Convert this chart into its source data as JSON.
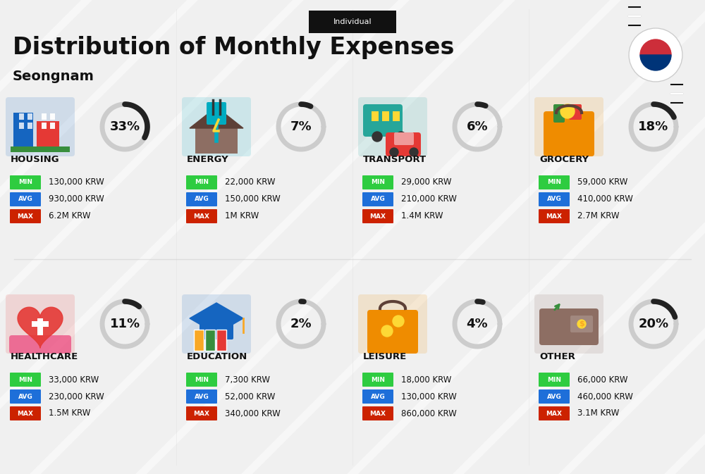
{
  "title": "Distribution of Monthly Expenses",
  "subtitle": "Individual",
  "location": "Seongnam",
  "bg_color": "#f0f0f0",
  "categories": [
    {
      "name": "HOUSING",
      "percent": 33,
      "min": "130,000 KRW",
      "avg": "930,000 KRW",
      "max": "6.2M KRW",
      "icon": "housing",
      "row": 0,
      "col": 0
    },
    {
      "name": "ENERGY",
      "percent": 7,
      "min": "22,000 KRW",
      "avg": "150,000 KRW",
      "max": "1M KRW",
      "icon": "energy",
      "row": 0,
      "col": 1
    },
    {
      "name": "TRANSPORT",
      "percent": 6,
      "min": "29,000 KRW",
      "avg": "210,000 KRW",
      "max": "1.4M KRW",
      "icon": "transport",
      "row": 0,
      "col": 2
    },
    {
      "name": "GROCERY",
      "percent": 18,
      "min": "59,000 KRW",
      "avg": "410,000 KRW",
      "max": "2.7M KRW",
      "icon": "grocery",
      "row": 0,
      "col": 3
    },
    {
      "name": "HEALTHCARE",
      "percent": 11,
      "min": "33,000 KRW",
      "avg": "230,000 KRW",
      "max": "1.5M KRW",
      "icon": "healthcare",
      "row": 1,
      "col": 0
    },
    {
      "name": "EDUCATION",
      "percent": 2,
      "min": "7,300 KRW",
      "avg": "52,000 KRW",
      "max": "340,000 KRW",
      "icon": "education",
      "row": 1,
      "col": 1
    },
    {
      "name": "LEISURE",
      "percent": 4,
      "min": "18,000 KRW",
      "avg": "130,000 KRW",
      "max": "860,000 KRW",
      "icon": "leisure",
      "row": 1,
      "col": 2
    },
    {
      "name": "OTHER",
      "percent": 20,
      "min": "66,000 KRW",
      "avg": "460,000 KRW",
      "max": "3.1M KRW",
      "icon": "other",
      "row": 1,
      "col": 3
    }
  ],
  "min_color": "#2ecc40",
  "avg_color": "#1e6fd9",
  "max_color": "#cc2200",
  "label_color": "#ffffff",
  "text_color": "#111111",
  "circle_color": "#cccccc",
  "filled_color": "#222222"
}
